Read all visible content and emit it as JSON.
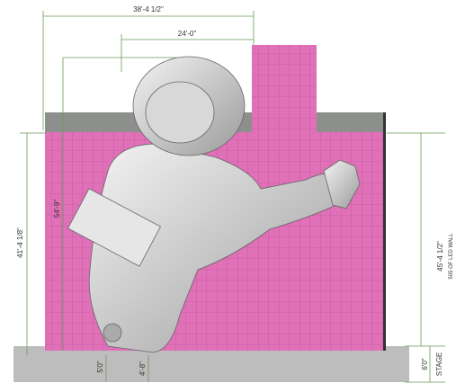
{
  "dimensions": {
    "top_width": "38'-4 1/2\"",
    "inner_width": "24'-0\"",
    "left_height": "41'-4 1/8\"",
    "inner_height": "54'-9\"",
    "right_height": "45'-4 1/2\"",
    "right_note": "505 OF LED WALL",
    "bottom_left": "5'0\"",
    "bottom_mid": "4'-8\"",
    "stage_height": "6'0\"",
    "stage_label": "STAGE"
  }
}
